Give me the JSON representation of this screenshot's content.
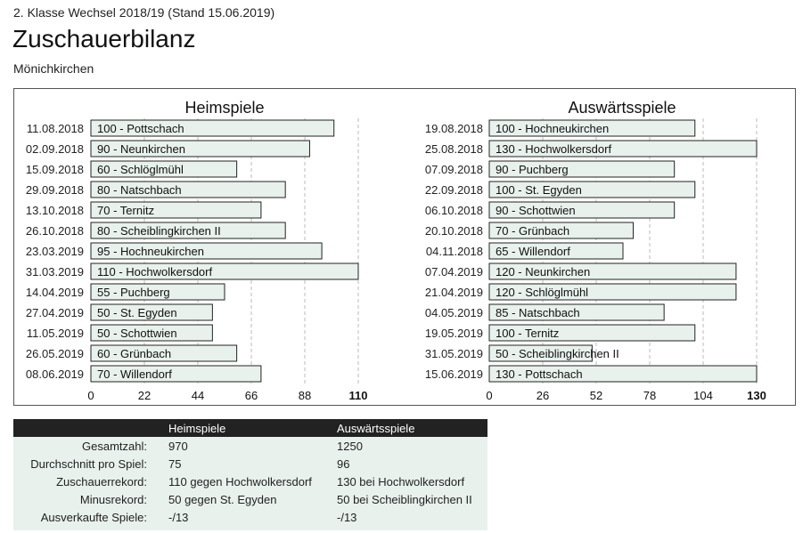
{
  "header": {
    "subtitle": "2. Klasse Wechsel 2018/19 (Stand 15.06.2019)",
    "title": "Zuschauerbilanz",
    "club": "Mönichkirchen"
  },
  "colors": {
    "bar_fill": "#e8f1ec",
    "bar_stroke": "#222222",
    "grid": "#bbbbbb",
    "table_header_bg": "#222222"
  },
  "chart_data": [
    {
      "type": "bar",
      "orientation": "horizontal",
      "title": "Heimspiele",
      "categories": [
        "11.08.2018",
        "02.09.2018",
        "15.09.2018",
        "29.09.2018",
        "13.10.2018",
        "26.10.2018",
        "23.03.2019",
        "31.03.2019",
        "14.04.2019",
        "27.04.2019",
        "11.05.2019",
        "26.05.2019",
        "08.06.2019"
      ],
      "values": [
        100,
        90,
        60,
        80,
        70,
        80,
        95,
        110,
        55,
        50,
        50,
        60,
        70
      ],
      "opponents": [
        "Pottschach",
        "Neunkirchen",
        "Schlöglmühl",
        "Natschbach",
        "Ternitz",
        "Scheiblingkirchen II",
        "Hochneukirchen",
        "Hochwolkersdorf",
        "Puchberg",
        "St. Egyden",
        "Schottwien",
        "Grünbach",
        "Willendorf"
      ],
      "xticks": [
        0,
        22,
        44,
        66,
        88,
        110
      ],
      "xmax_label": 110,
      "xlim": [
        0,
        110
      ],
      "grid": true
    },
    {
      "type": "bar",
      "orientation": "horizontal",
      "title": "Auswärtsspiele",
      "categories": [
        "19.08.2018",
        "25.08.2018",
        "07.09.2018",
        "22.09.2018",
        "06.10.2018",
        "20.10.2018",
        "04.11.2018",
        "07.04.2019",
        "21.04.2019",
        "04.05.2019",
        "19.05.2019",
        "31.05.2019",
        "15.06.2019"
      ],
      "values": [
        100,
        130,
        90,
        100,
        90,
        70,
        65,
        120,
        120,
        85,
        100,
        50,
        130
      ],
      "opponents": [
        "Hochneukirchen",
        "Hochwolkersdorf",
        "Puchberg",
        "St. Egyden",
        "Schottwien",
        "Grünbach",
        "Willendorf",
        "Neunkirchen",
        "Schlöglmühl",
        "Natschbach",
        "Ternitz",
        "Scheiblingkirchen II",
        "Pottschach"
      ],
      "xticks": [
        0,
        26,
        52,
        78,
        104,
        130
      ],
      "xmax_label": 130,
      "xlim": [
        0,
        130
      ],
      "grid": true
    }
  ],
  "stats": {
    "col_home": "Heimspiele",
    "col_away": "Auswärtsspiele",
    "rows": [
      {
        "label": "Gesamtzahl:",
        "home": "970",
        "away": "1250"
      },
      {
        "label": "Durchschnitt pro Spiel:",
        "home": "75",
        "away": "96"
      },
      {
        "label": "Zuschauerrekord:",
        "home": "110 gegen Hochwolkersdorf",
        "away": "130 bei Hochwolkersdorf"
      },
      {
        "label": "Minusrekord:",
        "home": "50 gegen St. Egyden",
        "away": "50 bei Scheiblingkirchen II"
      },
      {
        "label": "Ausverkaufte Spiele:",
        "home": "-/13",
        "away": "-/13"
      }
    ]
  }
}
